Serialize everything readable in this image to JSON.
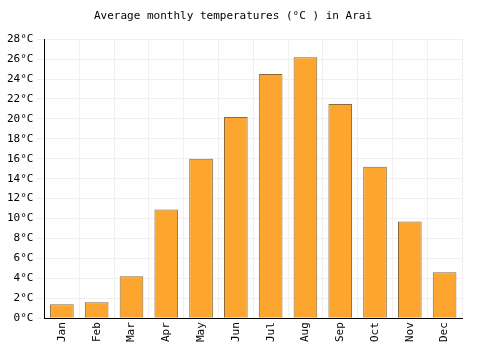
{
  "chart_data": {
    "type": "bar",
    "title": "Average monthly temperatures (°C ) in Arai",
    "categories": [
      "Jan",
      "Feb",
      "Mar",
      "Apr",
      "May",
      "Jun",
      "Jul",
      "Aug",
      "Sep",
      "Oct",
      "Nov",
      "Dec"
    ],
    "values": [
      1.4,
      1.6,
      4.2,
      10.9,
      16.0,
      20.2,
      24.5,
      26.2,
      21.5,
      15.2,
      9.7,
      4.6
    ],
    "color": "#fca630",
    "ylim": [
      0,
      28
    ],
    "yticks": [
      {
        "value": 0,
        "label": "0°C"
      },
      {
        "value": 2,
        "label": "2°C"
      },
      {
        "value": 4,
        "label": "4°C"
      },
      {
        "value": 6,
        "label": "6°C"
      },
      {
        "value": 8,
        "label": "8°C"
      },
      {
        "value": 10,
        "label": "10°C"
      },
      {
        "value": 12,
        "label": "12°C"
      },
      {
        "value": 14,
        "label": "14°C"
      },
      {
        "value": 16,
        "label": "16°C"
      },
      {
        "value": 18,
        "label": "18°C"
      },
      {
        "value": 20,
        "label": "20°C"
      },
      {
        "value": 22,
        "label": "22°C"
      },
      {
        "value": 24,
        "label": "24°C"
      },
      {
        "value": 26,
        "label": "26°C"
      },
      {
        "value": 28,
        "label": "28°C"
      }
    ],
    "grid": true
  }
}
